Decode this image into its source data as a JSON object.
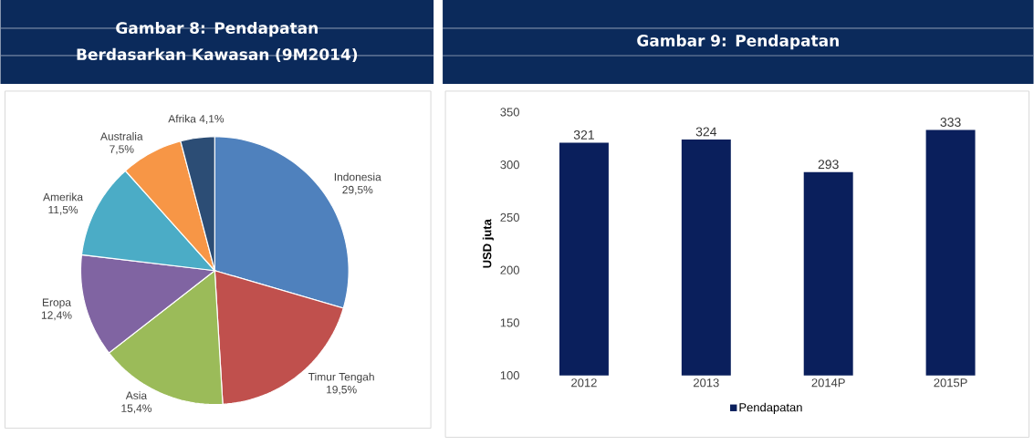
{
  "chart_data": [
    {
      "type": "pie",
      "title": "Gambar 8: Pendapatan Berdasarkan Kawasan (9M2014)",
      "categories": [
        "Indonesia",
        "Timur Tengah",
        "Asia",
        "Eropa",
        "Amerika",
        "Australia",
        "Afrika"
      ],
      "values": [
        29.5,
        19.5,
        15.4,
        12.4,
        11.5,
        7.5,
        4.1
      ],
      "colors": [
        "#4f81bd",
        "#c0504d",
        "#9bbb59",
        "#8064a2",
        "#4bacc6",
        "#f79646",
        "#2c4d75"
      ],
      "value_labels": [
        "29,5%",
        "19,5%",
        "15,4%",
        "12,4%",
        "11,5%",
        "7,5%",
        "4,1%"
      ]
    },
    {
      "type": "bar",
      "title": "Gambar 9: Pendapatan",
      "ylabel": "USD juta",
      "categories": [
        "2012",
        "2013",
        "2014P",
        "2015P"
      ],
      "series": [
        {
          "name": "Pendapatan",
          "color": "#0a1f5c",
          "values": [
            321,
            324,
            293,
            333
          ]
        }
      ],
      "ylim": [
        100,
        350
      ],
      "yticks": [
        100,
        150,
        200,
        250,
        300,
        350
      ],
      "data_labels": true,
      "legend": "bottom"
    }
  ]
}
